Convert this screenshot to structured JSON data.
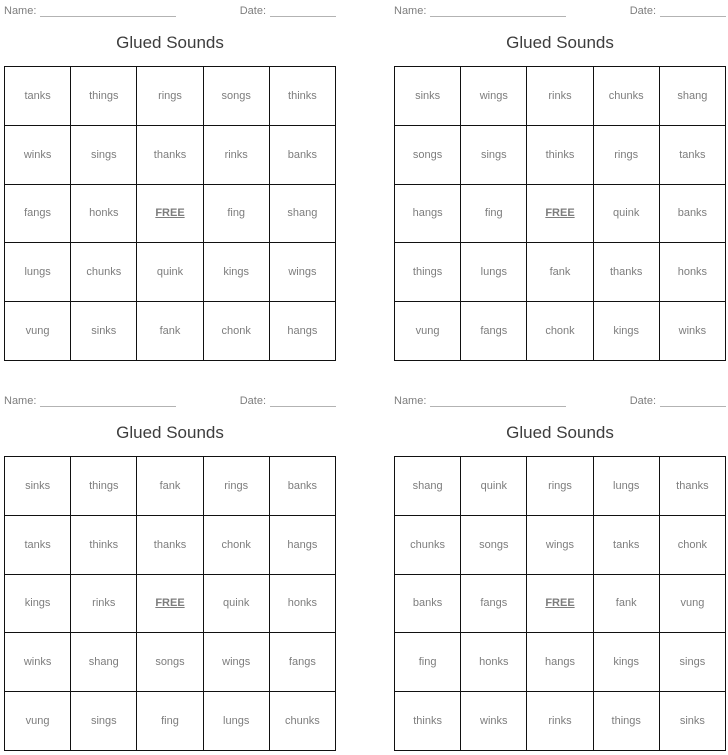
{
  "header": {
    "name_label": "Name:",
    "date_label": "Date:"
  },
  "title": "Glued Sounds",
  "free_label": "FREE",
  "colors": {
    "grid_border": "#111111",
    "word_text": "#7d7d7d",
    "title_text": "#3d3d3d",
    "blank_line": "#b3b3b3"
  },
  "cards": [
    {
      "title": "Glued Sounds",
      "words": [
        "tanks",
        "things",
        "rings",
        "songs",
        "thinks",
        "winks",
        "sings",
        "thanks",
        "rinks",
        "banks",
        "fangs",
        "honks",
        "FREE",
        "fing",
        "shang",
        "lungs",
        "chunks",
        "quink",
        "kings",
        "wings",
        "vung",
        "sinks",
        "fank",
        "chonk",
        "hangs"
      ]
    },
    {
      "title": "Glued Sounds",
      "words": [
        "sinks",
        "wings",
        "rinks",
        "chunks",
        "shang",
        "songs",
        "sings",
        "thinks",
        "rings",
        "tanks",
        "hangs",
        "fing",
        "FREE",
        "quink",
        "banks",
        "things",
        "lungs",
        "fank",
        "thanks",
        "honks",
        "vung",
        "fangs",
        "chonk",
        "kings",
        "winks"
      ]
    },
    {
      "title": "Glued Sounds",
      "words": [
        "sinks",
        "things",
        "fank",
        "rings",
        "banks",
        "tanks",
        "thinks",
        "thanks",
        "chonk",
        "hangs",
        "kings",
        "rinks",
        "FREE",
        "quink",
        "honks",
        "winks",
        "shang",
        "songs",
        "wings",
        "fangs",
        "vung",
        "sings",
        "fing",
        "lungs",
        "chunks"
      ]
    },
    {
      "title": "Glued Sounds",
      "words": [
        "shang",
        "quink",
        "rings",
        "lungs",
        "thanks",
        "chunks",
        "songs",
        "wings",
        "tanks",
        "chonk",
        "banks",
        "fangs",
        "FREE",
        "fank",
        "vung",
        "fing",
        "honks",
        "hangs",
        "kings",
        "sings",
        "thinks",
        "winks",
        "rinks",
        "things",
        "sinks"
      ]
    }
  ]
}
